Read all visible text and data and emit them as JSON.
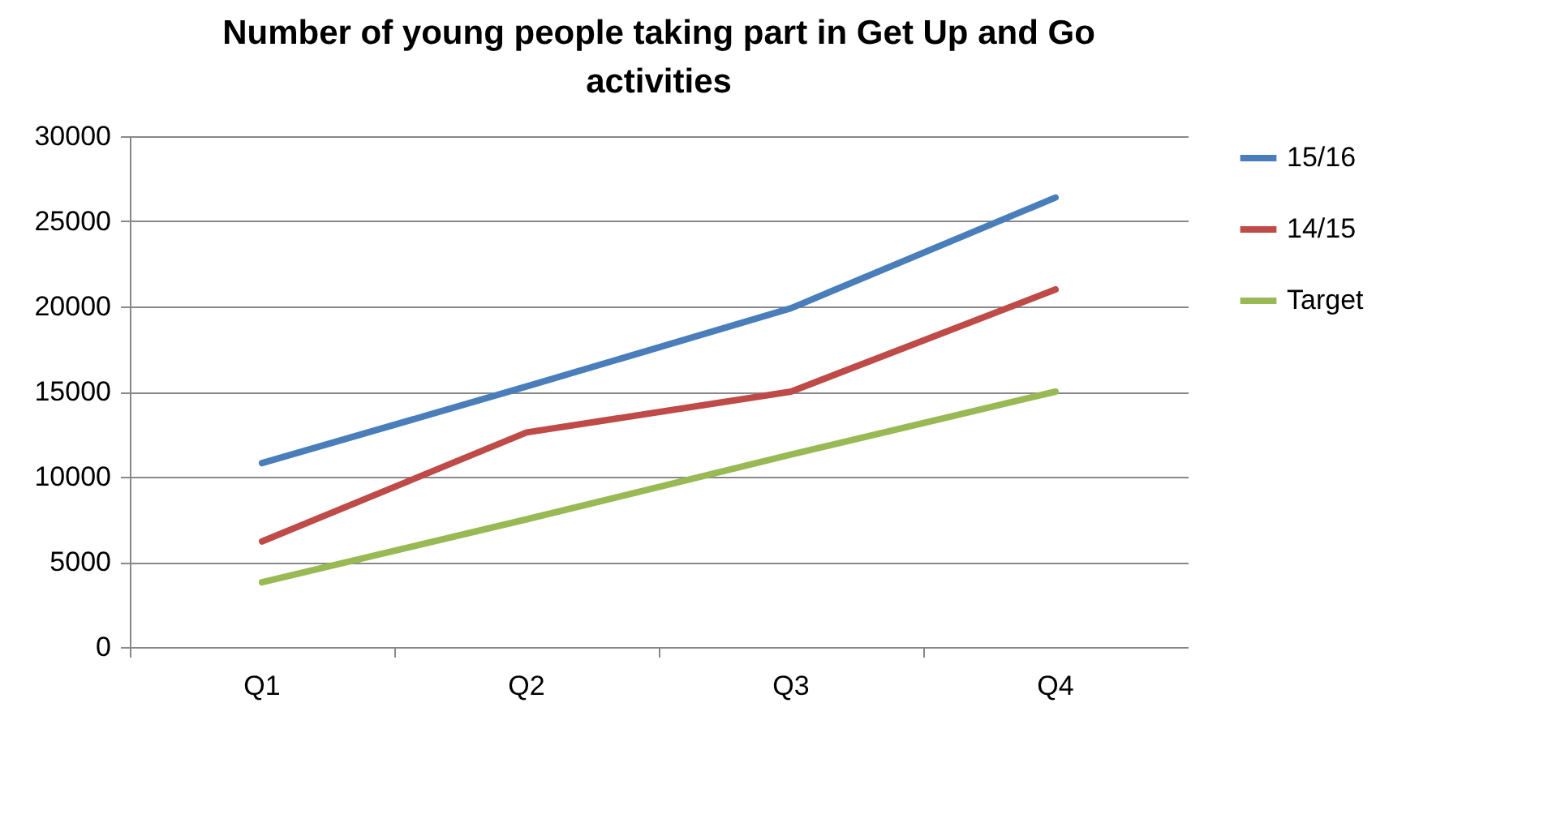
{
  "chart_data": {
    "type": "line",
    "title": "Number of young people taking part in Get Up and Go activities",
    "categories": [
      "Q1",
      "Q2",
      "Q3",
      "Q4"
    ],
    "series": [
      {
        "name": "15/16",
        "color": "#4a7ebb",
        "values": [
          10800,
          15300,
          19900,
          26400
        ]
      },
      {
        "name": "14/15",
        "color": "#be4b48",
        "values": [
          6200,
          12600,
          15000,
          21000
        ]
      },
      {
        "name": "Target",
        "color": "#98b954",
        "values": [
          3800,
          7500,
          11300,
          15000
        ]
      }
    ],
    "ylim": [
      0,
      30000
    ],
    "yticks": [
      0,
      5000,
      10000,
      15000,
      20000,
      25000,
      30000
    ],
    "grid": "y",
    "legend": "right",
    "marker": "none",
    "line_style": "solid"
  }
}
